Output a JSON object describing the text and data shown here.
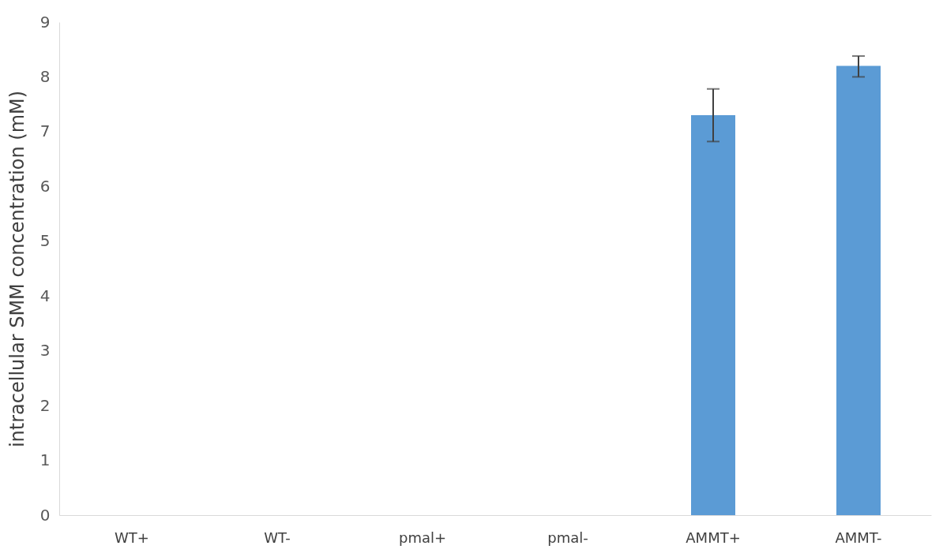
{
  "chart_data": {
    "type": "bar",
    "ylabel": "intracellular SMM concentration (mM)",
    "categories": [
      "WT+",
      "WT-",
      "pmal+",
      "pmal-",
      "AMMT+",
      "AMMT-"
    ],
    "values": [
      0,
      0,
      0,
      0,
      7.3,
      8.2
    ],
    "errors": [
      null,
      null,
      null,
      null,
      [
        6.82,
        7.78
      ],
      [
        8.0,
        8.38
      ]
    ],
    "color": "#5b9bd5",
    "ylim": [
      0,
      9
    ],
    "yticks": [
      0,
      1,
      2,
      3,
      4,
      5,
      6,
      7,
      8,
      9
    ],
    "grid": false
  }
}
